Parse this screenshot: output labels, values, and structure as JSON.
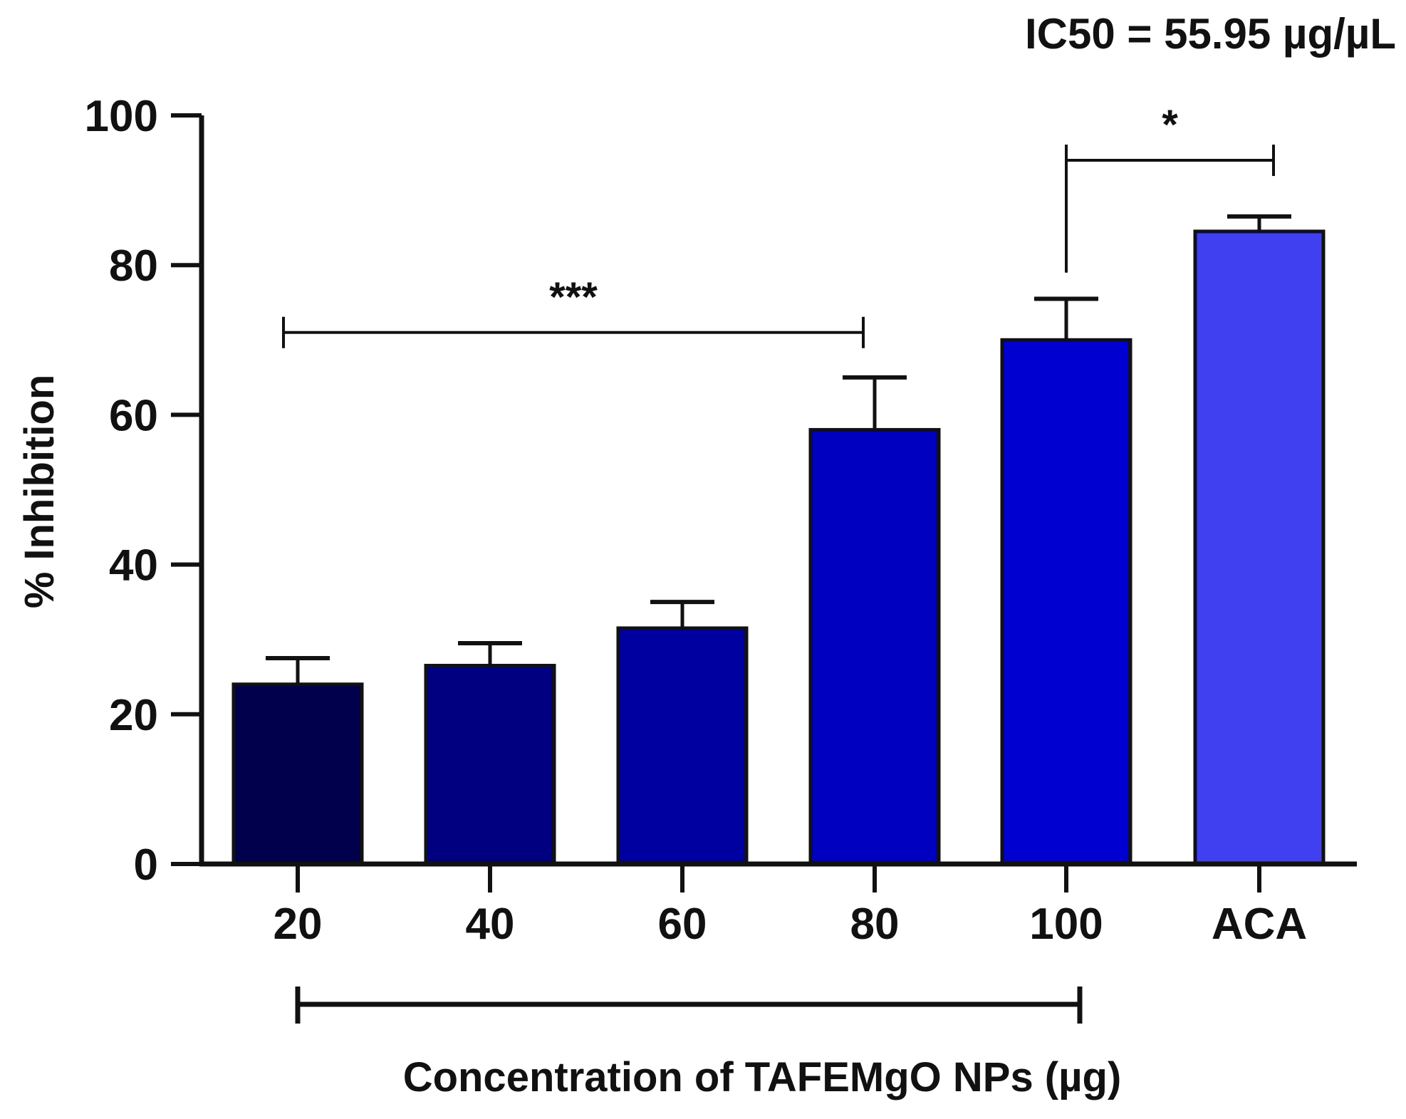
{
  "chart_data": {
    "type": "bar",
    "annotation_top": "IC50 = 55.95 µg/µL",
    "xlabel": "Concentration of TAFEMgO NPs (µg)",
    "ylabel": "% Inhibition",
    "ylim": [
      0,
      100
    ],
    "yticks": [
      "0",
      "20",
      "40",
      "60",
      "80",
      "100"
    ],
    "categories": [
      "20",
      "40",
      "60",
      "80",
      "100",
      "ACA"
    ],
    "values": [
      24,
      26.5,
      31.5,
      58,
      70,
      84.5
    ],
    "errors": [
      3.5,
      3,
      3.5,
      7,
      5.5,
      2
    ],
    "colors": [
      "#00004d",
      "#000080",
      "#0000a0",
      "#0000c0",
      "#0000d0",
      "#4040f0"
    ],
    "significance": [
      {
        "label": "***",
        "from": "20",
        "to": "80",
        "level": 71
      },
      {
        "label": "*",
        "from": "100",
        "to": "ACA",
        "level": 94
      }
    ],
    "grid": false,
    "legend": "none"
  }
}
